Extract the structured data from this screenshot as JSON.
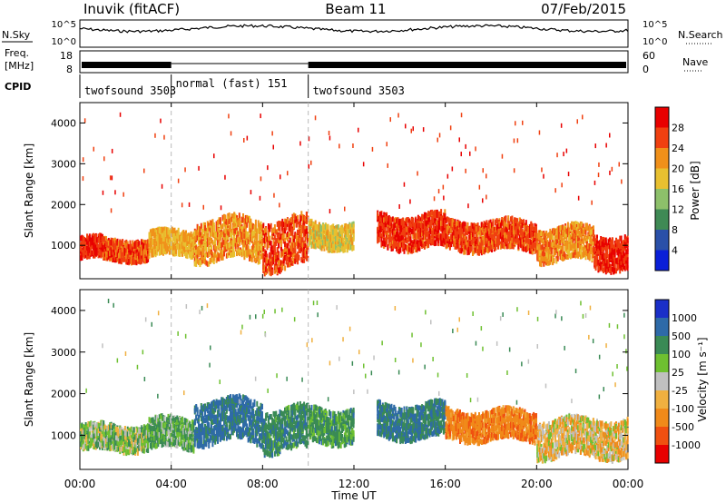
{
  "header": {
    "station": "Inuvik (fitACF)",
    "beam": "Beam 11",
    "date": "07/Feb/2015"
  },
  "left_labels": {
    "nsky": "N.Sky",
    "freq_line1": "Freq.",
    "freq_line2": "[MHz]",
    "cpid": "CPID"
  },
  "right_labels": {
    "nsearch": "N.Search",
    "nave": "Nave"
  },
  "strip_ticks": {
    "noise_hi": "10^5",
    "noise_lo": "10^0",
    "freq_hi": "18",
    "freq_lo": "8",
    "nave_hi": "60",
    "nave_lo": "0",
    "nsearch_hi": "10^5",
    "nsearch_lo": "10^0"
  },
  "cpid_segments": [
    {
      "label": "twofsound 3503",
      "start_h": 0,
      "end_h": 4
    },
    {
      "label": "normal (fast) 151",
      "start_h": 4,
      "end_h": 10
    },
    {
      "label": "twofsound 3503",
      "start_h": 10,
      "end_h": 24
    }
  ],
  "power_panel": {
    "ylabel": "Slant Range [km]",
    "yticks": [
      "1000",
      "2000",
      "3000",
      "4000"
    ],
    "colorbar_title": "Power [dB]",
    "colorbar_ticks": [
      "4",
      "8",
      "12",
      "16",
      "20",
      "24",
      "28"
    ]
  },
  "velocity_panel": {
    "ylabel": "Slant Range [km]",
    "yticks": [
      "1000",
      "2000",
      "3000",
      "4000"
    ],
    "colorbar_title": "Velocity [m s⁻¹]",
    "colorbar_ticks": [
      "1000",
      "500",
      "100",
      "25",
      "-25",
      "-100",
      "-500",
      "-1000"
    ]
  },
  "x_axis": {
    "ticks": [
      "00:00",
      "04:00",
      "08:00",
      "12:00",
      "16:00",
      "20:00",
      "00:00"
    ],
    "xlabel": "Time UT"
  },
  "colors": {
    "power": [
      "#0a1fd8",
      "#2a50a8",
      "#3f8a55",
      "#8dc06a",
      "#e8c030",
      "#f0901a",
      "#f04010",
      "#e80000"
    ],
    "velocity": [
      "#1a2fc8",
      "#2e6aa8",
      "#3a8a55",
      "#6ec030",
      "#c0c0c0",
      "#f0b040",
      "#f08a1a",
      "#f05010",
      "#e80000"
    ]
  },
  "chart_data": [
    {
      "type": "heatmap",
      "title": "Power",
      "xlabel": "Time UT",
      "ylabel": "Slant Range [km]",
      "xlim": [
        0,
        24
      ],
      "ylim": [
        180,
        4500
      ],
      "colorbar": {
        "label": "Power [dB]",
        "range": [
          0,
          32
        ],
        "ticks": [
          4,
          8,
          12,
          16,
          20,
          24,
          28
        ]
      },
      "bands": [
        {
          "t_start": 0.0,
          "t_end": 1.0,
          "range_center": 1000,
          "range_halfwidth": 250,
          "value": 28
        },
        {
          "t_start": 1.0,
          "t_end": 3.0,
          "range_center": 950,
          "range_halfwidth": 250,
          "value": 26
        },
        {
          "t_start": 3.0,
          "t_end": 5.0,
          "range_center": 1100,
          "range_halfwidth": 300,
          "value": 20
        },
        {
          "t_start": 5.0,
          "t_end": 8.0,
          "range_center": 1200,
          "range_halfwidth": 500,
          "value": 22
        },
        {
          "t_start": 8.0,
          "t_end": 10.0,
          "range_center": 1100,
          "range_halfwidth": 600,
          "value": 26
        },
        {
          "t_start": 10.0,
          "t_end": 12.0,
          "range_center": 1300,
          "range_halfwidth": 300,
          "value": 18
        },
        {
          "t_start": 13.0,
          "t_end": 16.0,
          "range_center": 1400,
          "range_halfwidth": 400,
          "value": 27
        },
        {
          "t_start": 16.0,
          "t_end": 20.0,
          "range_center": 1300,
          "range_halfwidth": 350,
          "value": 26
        },
        {
          "t_start": 20.0,
          "t_end": 22.5,
          "range_center": 1100,
          "range_halfwidth": 400,
          "value": 22
        },
        {
          "t_start": 22.5,
          "t_end": 24.0,
          "range_center": 900,
          "range_halfwidth": 400,
          "value": 28
        }
      ]
    },
    {
      "type": "heatmap",
      "title": "Velocity",
      "xlabel": "Time UT",
      "ylabel": "Slant Range [km]",
      "xlim": [
        0,
        24
      ],
      "ylim": [
        180,
        4500
      ],
      "colorbar": {
        "label": "Velocity [m s⁻¹]",
        "range": [
          -1000,
          1000
        ],
        "ticks": [
          1000,
          500,
          100,
          25,
          -25,
          -100,
          -500,
          -1000
        ]
      },
      "bands": [
        {
          "t_start": 0.0,
          "t_end": 3.0,
          "range_center": 1000,
          "range_halfwidth": 300,
          "value": 50
        },
        {
          "t_start": 3.0,
          "t_end": 5.0,
          "range_center": 1100,
          "range_halfwidth": 350,
          "value": 100
        },
        {
          "t_start": 5.0,
          "t_end": 8.0,
          "range_center": 1400,
          "range_halfwidth": 500,
          "value": 300
        },
        {
          "t_start": 8.0,
          "t_end": 10.0,
          "range_center": 1200,
          "range_halfwidth": 500,
          "value": 200
        },
        {
          "t_start": 10.0,
          "t_end": 12.0,
          "range_center": 1300,
          "range_halfwidth": 400,
          "value": 150
        },
        {
          "t_start": 13.0,
          "t_end": 16.0,
          "range_center": 1400,
          "range_halfwidth": 400,
          "value": 250
        },
        {
          "t_start": 16.0,
          "t_end": 20.0,
          "range_center": 1300,
          "range_halfwidth": 350,
          "value": -200
        },
        {
          "t_start": 20.0,
          "t_end": 24.0,
          "range_center": 1000,
          "range_halfwidth": 450,
          "value": -50
        }
      ]
    }
  ]
}
